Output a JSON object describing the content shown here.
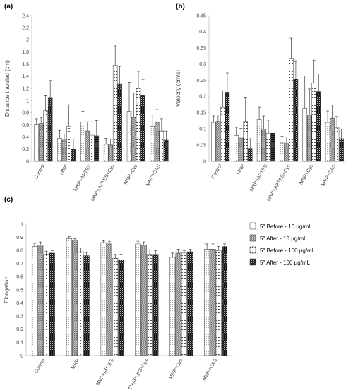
{
  "colors": {
    "axis": "#bfbfbf",
    "bar_stroke": "#333333",
    "error": "#222222",
    "text": "#444444"
  },
  "legend": [
    {
      "label": "5\" Before - 10 µg/mL",
      "pattern": "dots"
    },
    {
      "label": "5\" After - 10 µg/mL",
      "pattern": "grid"
    },
    {
      "label": "5\" Before - 100 µg/mL",
      "pattern": "hstripe"
    },
    {
      "label": "5\" After - 100 µg/mL",
      "pattern": "checker"
    }
  ],
  "chart_data": [
    {
      "panel": "(a)",
      "type": "bar",
      "ylabel": "Distance traveled (cm)",
      "ylim": [
        0,
        2.4
      ],
      "yticks": [
        0,
        0.2,
        0.4,
        0.6,
        0.8,
        1,
        1.2,
        1.4,
        1.6,
        1.8,
        2,
        2.2,
        2.4
      ],
      "categories": [
        "Control",
        "MNP",
        "MNP+APTES",
        "MNP+APTES+Cys",
        "MNP+Cys",
        "MNP+CAS"
      ],
      "series": [
        {
          "values": [
            0.6,
            0.38,
            0.65,
            0.28,
            0.82,
            0.58
          ],
          "errors": [
            0.1,
            0.13,
            0.17,
            0.1,
            0.48,
            0.18
          ]
        },
        {
          "values": [
            0.62,
            0.35,
            0.5,
            0.27,
            0.72,
            0.65
          ],
          "errors": [
            0.1,
            0.1,
            0.15,
            0.1,
            0.4,
            0.2
          ]
        },
        {
          "values": [
            0.83,
            0.58,
            0.43,
            1.58,
            1.2,
            0.5
          ],
          "errors": [
            0.25,
            0.35,
            0.22,
            0.32,
            0.28,
            0.2
          ]
        },
        {
          "values": [
            1.05,
            0.2,
            0.42,
            1.27,
            1.08,
            0.35
          ],
          "errors": [
            0.28,
            0.17,
            0.25,
            0.29,
            0.27,
            0.15
          ]
        }
      ]
    },
    {
      "panel": "(b)",
      "type": "bar",
      "ylabel": "Velocity (cm/s)",
      "ylim": [
        0,
        0.45
      ],
      "yticks": [
        0,
        0.05,
        0.1,
        0.15,
        0.2,
        0.25,
        0.3,
        0.35,
        0.4,
        0.45
      ],
      "categories": [
        "Control",
        "MNP",
        "MNP+APTES",
        "MNP+APTES+Cys",
        "MNP+Cys",
        "MNP+CAS"
      ],
      "series": [
        {
          "values": [
            0.12,
            0.08,
            0.13,
            0.057,
            0.163,
            0.12
          ],
          "errors": [
            0.02,
            0.025,
            0.038,
            0.02,
            0.1,
            0.035
          ]
        },
        {
          "values": [
            0.123,
            0.072,
            0.1,
            0.055,
            0.143,
            0.133
          ],
          "errors": [
            0.02,
            0.03,
            0.04,
            0.02,
            0.08,
            0.04
          ]
        },
        {
          "values": [
            0.168,
            0.123,
            0.087,
            0.318,
            0.242,
            0.103
          ],
          "errors": [
            0.05,
            0.075,
            0.04,
            0.062,
            0.07,
            0.035
          ]
        },
        {
          "values": [
            0.213,
            0.04,
            0.087,
            0.253,
            0.215,
            0.07
          ],
          "errors": [
            0.06,
            0.03,
            0.05,
            0.057,
            0.055,
            0.03
          ]
        }
      ]
    },
    {
      "panel": "(c)",
      "type": "bar",
      "ylabel": "Elongation",
      "ylim": [
        0,
        1
      ],
      "yticks": [
        0,
        0.1,
        0.2,
        0.3,
        0.4,
        0.5,
        0.6,
        0.7,
        0.8,
        0.9,
        1
      ],
      "categories": [
        "Control",
        "MNP",
        "MNP+APTES",
        "MNP+APTES+Cys",
        "MNP+Cys",
        "MNP+CAS"
      ],
      "series": [
        {
          "values": [
            0.83,
            0.89,
            0.86,
            0.85,
            0.75,
            0.81
          ],
          "errors": [
            0.025,
            0.015,
            0.015,
            0.02,
            0.03,
            0.04
          ]
        },
        {
          "values": [
            0.84,
            0.88,
            0.85,
            0.84,
            0.78,
            0.81
          ],
          "errors": [
            0.025,
            0.01,
            0.02,
            0.025,
            0.03,
            0.04
          ]
        },
        {
          "values": [
            0.77,
            0.79,
            0.74,
            0.77,
            0.78,
            0.8
          ],
          "errors": [
            0.025,
            0.03,
            0.03,
            0.035,
            0.02,
            0.03
          ]
        },
        {
          "values": [
            0.78,
            0.76,
            0.73,
            0.77,
            0.79,
            0.83
          ],
          "errors": [
            0.02,
            0.025,
            0.04,
            0.03,
            0.02,
            0.02
          ]
        }
      ]
    }
  ]
}
